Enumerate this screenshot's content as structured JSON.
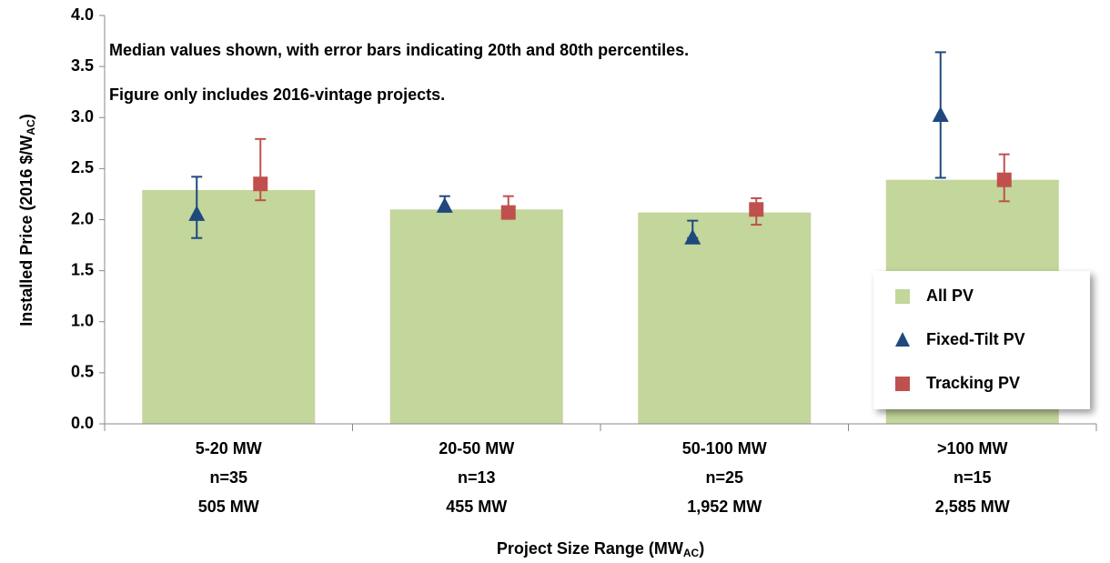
{
  "chart_data": {
    "type": "bar_with_markers",
    "annotations": [
      "Median values shown, with error bars indicating 20th and 80th percentiles.",
      "Figure only includes 2016-vintage projects."
    ],
    "y_label": [
      "Installed Price (2016 $/W",
      "AC",
      ")"
    ],
    "x_label": [
      "Project Size Range (MW",
      "AC",
      ")"
    ],
    "categories": [
      "5-20 MW",
      "20-50 MW",
      "50-100 MW",
      ">100 MW"
    ],
    "sample_sizes": [
      "n=35",
      "n=13",
      "n=25",
      "n=15"
    ],
    "capacities": [
      "505 MW",
      "455 MW",
      "1,952 MW",
      "2,585 MW"
    ],
    "ylim": [
      0,
      4
    ],
    "yticks": [
      {
        "value": 0,
        "label": "0.0"
      },
      {
        "value": 0.5,
        "label": "0.5"
      },
      {
        "value": 1,
        "label": "1.0"
      },
      {
        "value": 1.5,
        "label": "1.5"
      },
      {
        "value": 2,
        "label": "2.0"
      },
      {
        "value": 2.5,
        "label": "2.5"
      },
      {
        "value": 3,
        "label": "3.0"
      },
      {
        "value": 3.5,
        "label": "3.5"
      },
      {
        "value": 4,
        "label": "4.0"
      }
    ],
    "legend": "lower right",
    "series": [
      {
        "name": "All PV",
        "type": "bar",
        "color": "#c3d69b",
        "values": [
          2.29,
          2.1,
          2.07,
          2.39
        ]
      },
      {
        "name": "Fixed-Tilt PV",
        "type": "triangle",
        "color": "#1f497d",
        "values": [
          2.05,
          2.13,
          1.82,
          3.02
        ],
        "low": [
          1.82,
          2.1,
          1.82,
          2.41
        ],
        "high": [
          2.42,
          2.23,
          1.99,
          3.64
        ]
      },
      {
        "name": "Tracking PV",
        "type": "square",
        "color": "#c0504d",
        "values": [
          2.35,
          2.07,
          2.1,
          2.39
        ],
        "low": [
          2.19,
          2.06,
          1.95,
          2.18
        ],
        "high": [
          2.79,
          2.23,
          2.21,
          2.64
        ]
      }
    ]
  }
}
